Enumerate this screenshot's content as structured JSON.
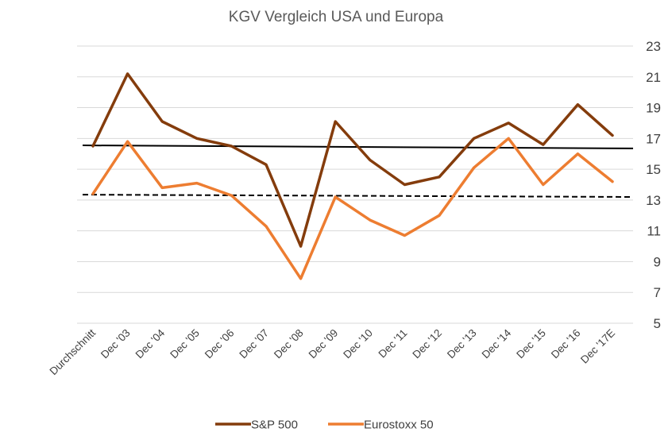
{
  "chart_data": {
    "type": "line",
    "title": "KGV Vergleich USA und Europa",
    "categories": [
      "Durchschnitt",
      "Dec '03",
      "Dec '04",
      "Dec '05",
      "Dec '06",
      "Dec '07",
      "Dec '08",
      "Dec '09",
      "Dec '10",
      "Dec '11",
      "Dec '12",
      "Dec '13",
      "Dec '14",
      "Dec '15",
      "Dec '16",
      "Dec '17E"
    ],
    "series": [
      {
        "name": "S&P 500",
        "color": "#843C0C",
        "values": [
          16.5,
          21.2,
          18.1,
          17.0,
          16.5,
          15.3,
          10.0,
          18.1,
          15.6,
          14.0,
          14.5,
          17.0,
          18.0,
          16.6,
          19.2,
          17.2
        ]
      },
      {
        "name": "Eurostoxx 50",
        "color": "#ED7D31",
        "values": [
          13.4,
          16.8,
          13.8,
          14.1,
          13.3,
          11.3,
          7.9,
          13.2,
          11.7,
          10.7,
          12.0,
          15.1,
          17.0,
          14.0,
          16.0,
          14.2
        ]
      }
    ],
    "reference_lines": [
      {
        "series": "S&P 500",
        "style": "solid",
        "color": "#000000",
        "from": 16.55,
        "to": 16.35
      },
      {
        "series": "Eurostoxx 50",
        "style": "dashed",
        "color": "#000000",
        "from": 13.35,
        "to": 13.2
      }
    ],
    "y_ticks": [
      5,
      7,
      9,
      11,
      13,
      15,
      17,
      19,
      21,
      23
    ],
    "ylim": [
      5,
      23
    ],
    "y_axis_position": "right",
    "grid": true,
    "legend": "bottom",
    "xlabel": "",
    "ylabel": ""
  }
}
